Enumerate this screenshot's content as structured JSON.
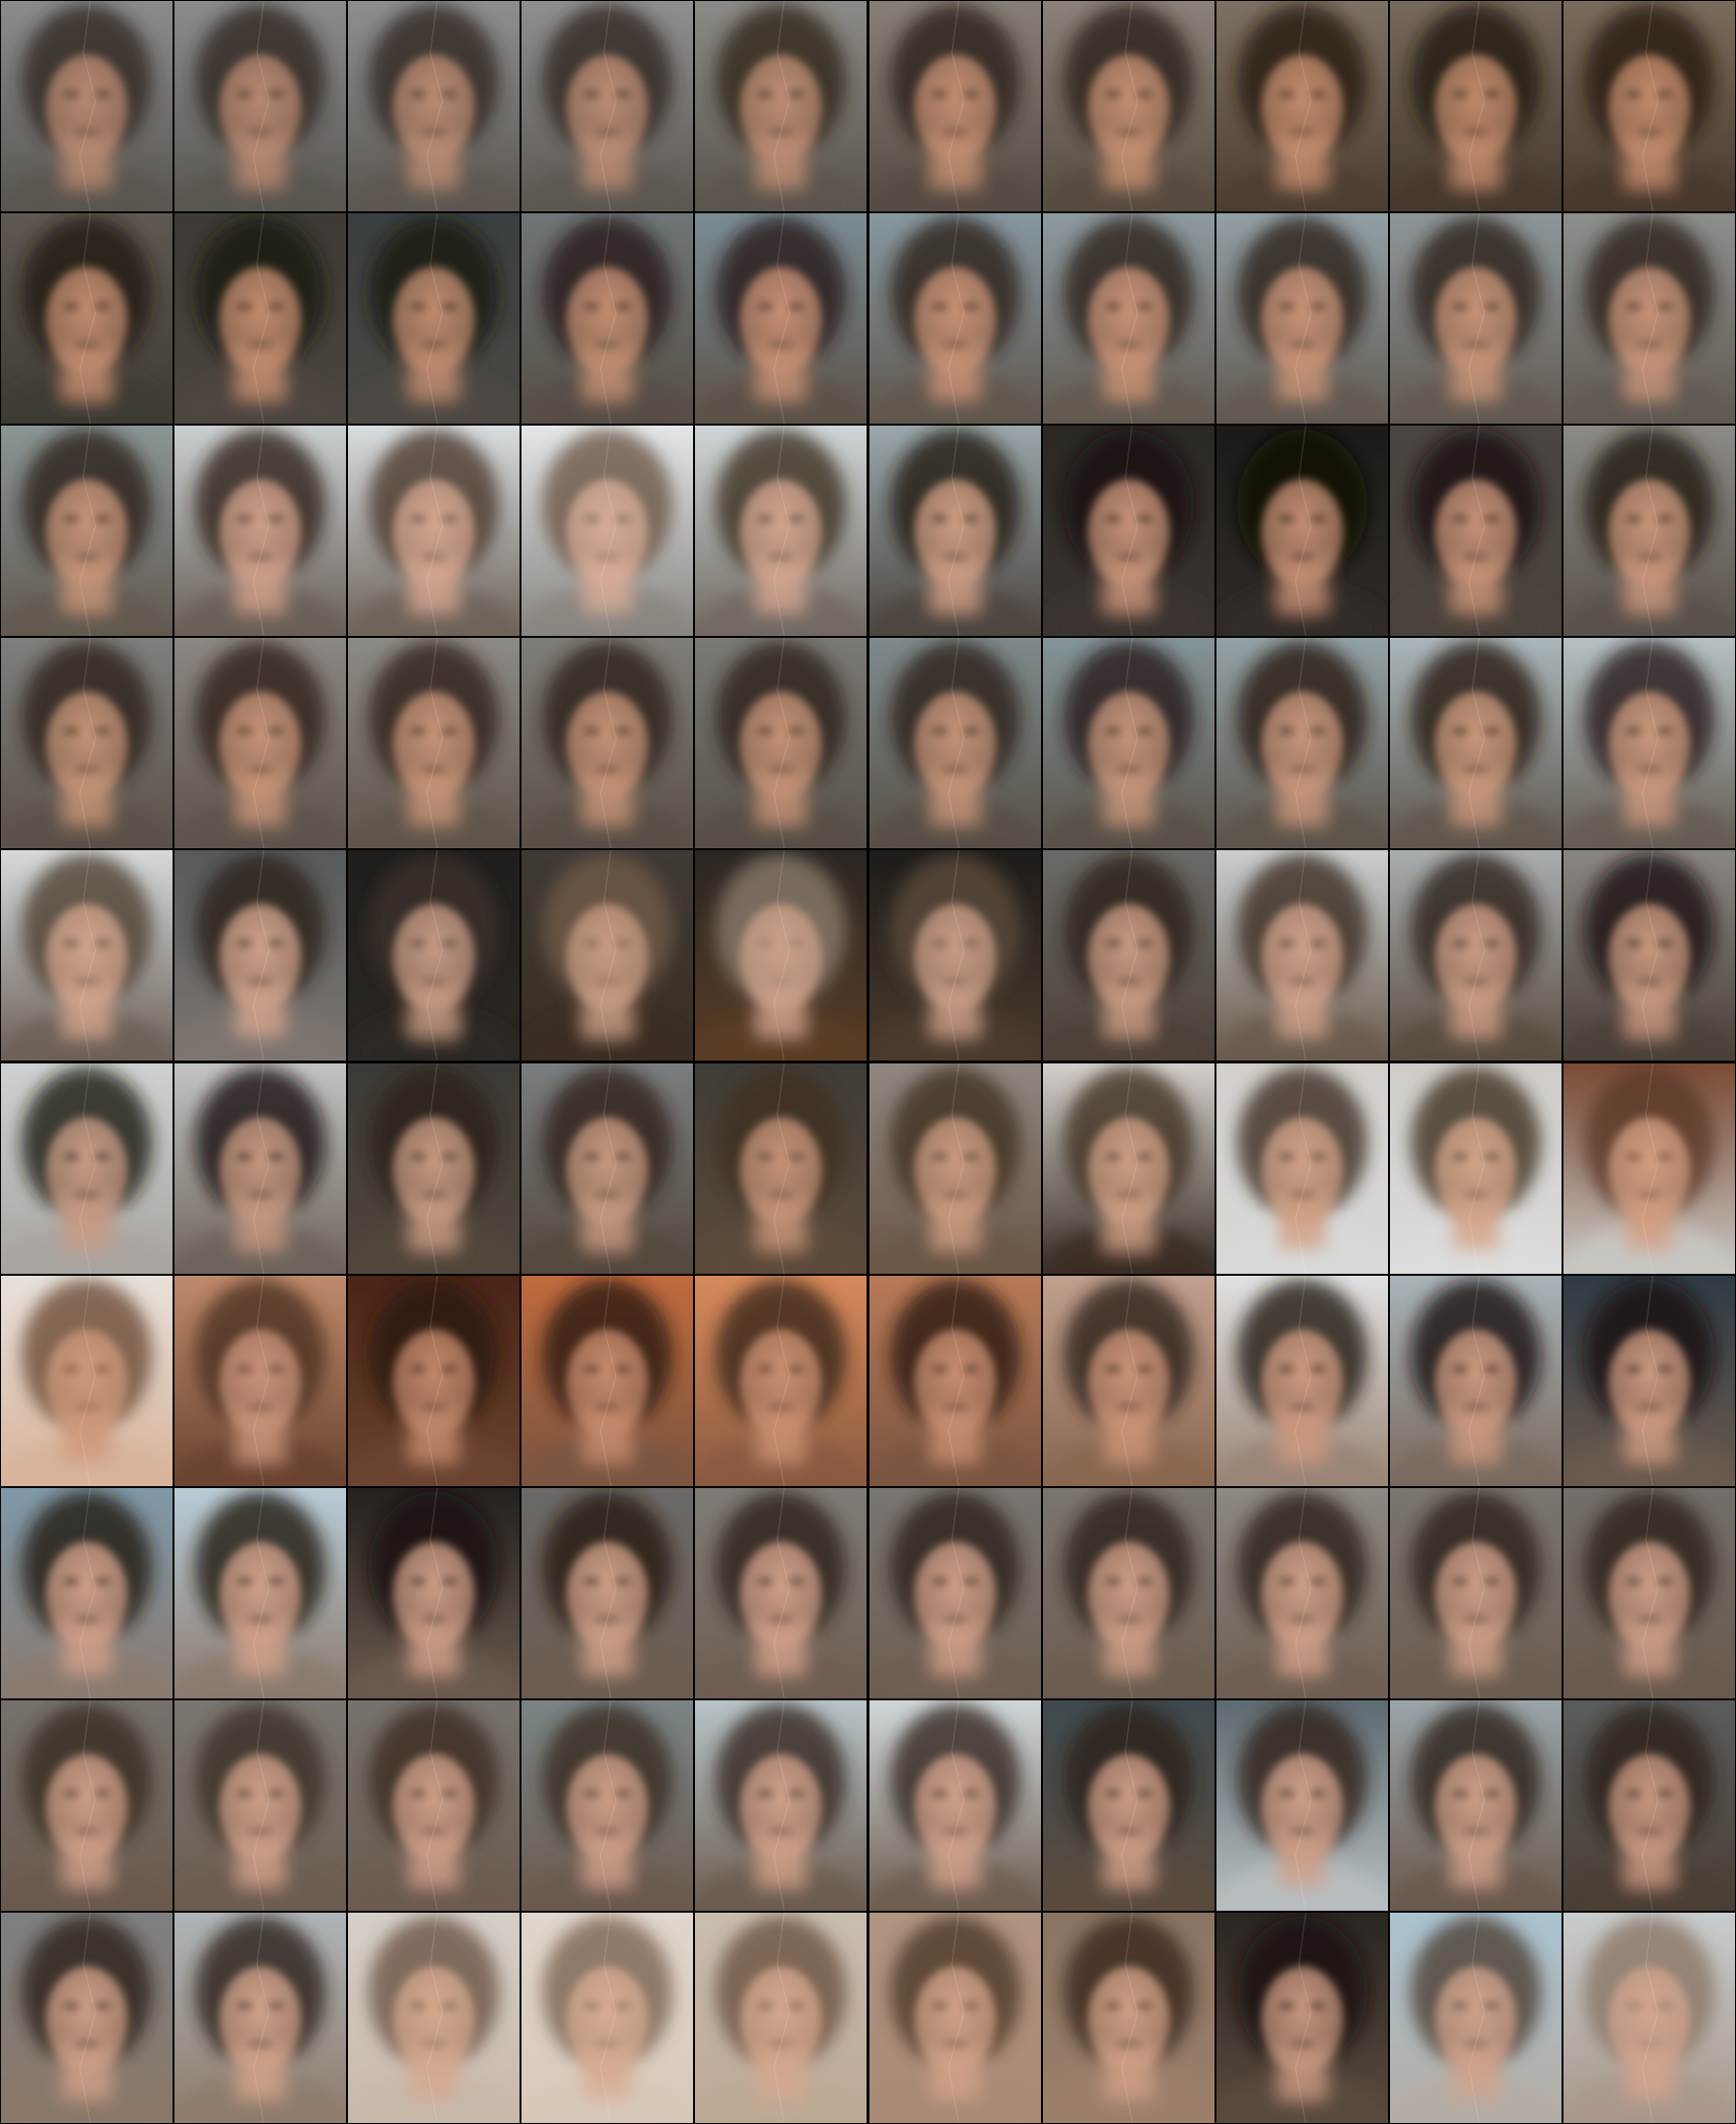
{
  "grid": {
    "rows": 10,
    "cols": 10,
    "separator_color": "#000000",
    "tiles": [
      {
        "bg_top": "#8a8c8c",
        "bg_bottom": "#5a5550",
        "hair": "#2e241e",
        "face": "#b98a72"
      },
      {
        "bg_top": "#8a8c8c",
        "bg_bottom": "#5a5550",
        "hair": "#2e241e",
        "face": "#b98a72"
      },
      {
        "bg_top": "#8d8f90",
        "bg_bottom": "#5c5650",
        "hair": "#30261f",
        "face": "#bb8c73"
      },
      {
        "bg_top": "#8e8f8f",
        "bg_bottom": "#5d5751",
        "hair": "#31271f",
        "face": "#bc8d74"
      },
      {
        "bg_top": "#8b8a86",
        "bg_bottom": "#5b544d",
        "hair": "#30251d",
        "face": "#c08e74"
      },
      {
        "bg_top": "#877f77",
        "bg_bottom": "#564b42",
        "hair": "#2d2219",
        "face": "#c48f72"
      },
      {
        "bg_top": "#8a8178",
        "bg_bottom": "#574b40",
        "hair": "#2c2118",
        "face": "#c59072"
      },
      {
        "bg_top": "#7d7163",
        "bg_bottom": "#4c3e32",
        "hair": "#271c14",
        "face": "#c48d6e"
      },
      {
        "bg_top": "#76695b",
        "bg_bottom": "#45382c",
        "hair": "#231811",
        "face": "#c28b6c"
      },
      {
        "bg_top": "#7a6b5b",
        "bg_bottom": "#48392c",
        "hair": "#241911",
        "face": "#c38c6c"
      },
      {
        "bg_top": "#5e5851",
        "bg_bottom": "#3f3a34",
        "hair": "#221a14",
        "face": "#c38d70"
      },
      {
        "bg_top": "#3d3934",
        "bg_bottom": "#4d4640",
        "hair": "#1c1511",
        "face": "#c48e70"
      },
      {
        "bg_top": "#394040",
        "bg_bottom": "#4c4842",
        "hair": "#1d1612",
        "face": "#c28d70"
      },
      {
        "bg_top": "#6f7676",
        "bg_bottom": "#564e46",
        "hair": "#261c15",
        "face": "#c48f72"
      },
      {
        "bg_top": "#7a8c94",
        "bg_bottom": "#5d5248",
        "hair": "#281d15",
        "face": "#c89074"
      },
      {
        "bg_top": "#8798a0",
        "bg_bottom": "#5f564d",
        "hair": "#2a1f17",
        "face": "#c99275"
      },
      {
        "bg_top": "#8d9aa0",
        "bg_bottom": "#625950",
        "hair": "#2b2018",
        "face": "#c99376"
      },
      {
        "bg_top": "#92a0a6",
        "bg_bottom": "#625a51",
        "hair": "#2c2119",
        "face": "#c99477"
      },
      {
        "bg_top": "#8e9699",
        "bg_bottom": "#625a52",
        "hair": "#2d221a",
        "face": "#c89477"
      },
      {
        "bg_top": "#8c8f8d",
        "bg_bottom": "#615951",
        "hair": "#2d221a",
        "face": "#c79478"
      },
      {
        "bg_top": "#8a9596",
        "bg_bottom": "#625a50",
        "hair": "#2c2119",
        "face": "#c89579"
      },
      {
        "bg_top": "#c9cfd0",
        "bg_bottom": "#6a6058",
        "hair": "#2e231b",
        "face": "#d0a08a"
      },
      {
        "bg_top": "#d8dde0",
        "bg_bottom": "#6e645a",
        "hair": "#4a3a2c",
        "face": "#d5a790"
      },
      {
        "bg_top": "#e3e7ea",
        "bg_bottom": "#8a8580",
        "hair": "#6a5646",
        "face": "#d8ad98"
      },
      {
        "bg_top": "#cfd6d8",
        "bg_bottom": "#726a62",
        "hair": "#3c2e23",
        "face": "#d4a68f"
      },
      {
        "bg_top": "#9aa7ab",
        "bg_bottom": "#4e4640",
        "hair": "#1e1611",
        "face": "#cf9e84"
      },
      {
        "bg_top": "#2a2824",
        "bg_bottom": "#3b3430",
        "hair": "#15100c",
        "face": "#c99479"
      },
      {
        "bg_top": "#1c1a17",
        "bg_bottom": "#312b27",
        "hair": "#100b08",
        "face": "#c58f74"
      },
      {
        "bg_top": "#4a4540",
        "bg_bottom": "#4a423c",
        "hair": "#1b140f",
        "face": "#c89378"
      },
      {
        "bg_top": "#8b8a86",
        "bg_bottom": "#5a524a",
        "hair": "#221912",
        "face": "#ca967b"
      },
      {
        "bg_top": "#7e7f7c",
        "bg_bottom": "#5b5148",
        "hair": "#2c2017",
        "face": "#c69477"
      },
      {
        "bg_top": "#8b8782",
        "bg_bottom": "#5d534a",
        "hair": "#2e2218",
        "face": "#c79478"
      },
      {
        "bg_top": "#8d8a85",
        "bg_bottom": "#5f554b",
        "hair": "#2f2319",
        "face": "#c79478"
      },
      {
        "bg_top": "#7f7d78",
        "bg_bottom": "#5a5047",
        "hair": "#2c2017",
        "face": "#c69377"
      },
      {
        "bg_top": "#7a7a76",
        "bg_bottom": "#575047",
        "hair": "#2a1f16",
        "face": "#c69377"
      },
      {
        "bg_top": "#7f8a8c",
        "bg_bottom": "#585047",
        "hair": "#291e16",
        "face": "#c69478"
      },
      {
        "bg_top": "#849498",
        "bg_bottom": "#5a5249",
        "hair": "#281d15",
        "face": "#c79579"
      },
      {
        "bg_top": "#93a2a6",
        "bg_bottom": "#5d544b",
        "hair": "#271c14",
        "face": "#c9977b"
      },
      {
        "bg_top": "#aab7bb",
        "bg_bottom": "#60574e",
        "hair": "#271c14",
        "face": "#ca987c"
      },
      {
        "bg_top": "#b5c1c4",
        "bg_bottom": "#655c53",
        "hair": "#281d15",
        "face": "#cb997d"
      },
      {
        "bg_top": "#d5dadc",
        "bg_bottom": "#6d6158",
        "hair": "#4c3d31",
        "face": "#d3a58d"
      },
      {
        "bg_top": "#555a5a",
        "bg_bottom": "#7d7570",
        "hair": "#2a2019",
        "face": "#d0a38c"
      },
      {
        "bg_top": "#1f1e1b",
        "bg_bottom": "#2c2723",
        "hair": "#3c3129",
        "face": "#c79b84"
      },
      {
        "bg_top": "#3f3a34",
        "bg_bottom": "#3a2d22",
        "hair": "#6f5a48",
        "face": "#c99c84"
      },
      {
        "bg_top": "#2a2622",
        "bg_bottom": "#5a3d26",
        "hair": "#8a7a6c",
        "face": "#cda18a"
      },
      {
        "bg_top": "#1e1c19",
        "bg_bottom": "#4a3a2d",
        "hair": "#5a4a3c",
        "face": "#c99d86"
      },
      {
        "bg_top": "#6a6a66",
        "bg_bottom": "#4c4038",
        "hair": "#2c221a",
        "face": "#c99b83"
      },
      {
        "bg_top": "#c9ced0",
        "bg_bottom": "#6a5b4d",
        "hair": "#3b2d22",
        "face": "#cfa18a"
      },
      {
        "bg_top": "#a9aeaf",
        "bg_bottom": "#5a4c40",
        "hair": "#2c2119",
        "face": "#cc9c84"
      },
      {
        "bg_top": "#8a8682",
        "bg_bottom": "#4a4038",
        "hair": "#1a130e",
        "face": "#c9997f"
      },
      {
        "bg_top": "#cfd1d0",
        "bg_bottom": "#a8a49f",
        "hair": "#1c1511",
        "face": "#c99c85"
      },
      {
        "bg_top": "#c2c4c2",
        "bg_bottom": "#6e645b",
        "hair": "#16110d",
        "face": "#c79981"
      },
      {
        "bg_top": "#3b3a36",
        "bg_bottom": "#51463b",
        "hair": "#2a1f17",
        "face": "#c79a81"
      },
      {
        "bg_top": "#7a7e7f",
        "bg_bottom": "#54483e",
        "hair": "#2f2319",
        "face": "#c89a80"
      },
      {
        "bg_top": "#3f3d38",
        "bg_bottom": "#5c4a3a",
        "hair": "#3e2e22",
        "face": "#c79478"
      },
      {
        "bg_top": "#8f8781",
        "bg_bottom": "#6a5646",
        "hair": "#3e2e22",
        "face": "#cc9b80"
      },
      {
        "bg_top": "#d3cfcb",
        "bg_bottom": "#3a2f26",
        "hair": "#3e2e22",
        "face": "#cf9f84"
      },
      {
        "bg_top": "#d2cfcb",
        "bg_bottom": "#d8d9d8",
        "hair": "#3c2c20",
        "face": "#d2a287"
      },
      {
        "bg_top": "#cfccc8",
        "bg_bottom": "#dcdcdb",
        "hair": "#3e2e22",
        "face": "#d5a689"
      },
      {
        "bg_top": "#7a4a34",
        "bg_bottom": "#c8c6c2",
        "hair": "#5a3a26",
        "face": "#d39f82"
      },
      {
        "bg_top": "#e7e1db",
        "bg_bottom": "#d7b39a",
        "hair": "#6c4a34",
        "face": "#cf9a7c"
      },
      {
        "bg_top": "#bf8a6c",
        "bg_bottom": "#6a4430",
        "hair": "#4a2f20",
        "face": "#c9937a"
      },
      {
        "bg_top": "#4a2416",
        "bg_bottom": "#6a4430",
        "hair": "#2a1810",
        "face": "#c4896c"
      },
      {
        "bg_top": "#bf6a3e",
        "bg_bottom": "#7a5440",
        "hair": "#2a1a12",
        "face": "#c88c6e"
      },
      {
        "bg_top": "#d78a5c",
        "bg_bottom": "#8a5a40",
        "hair": "#3a261a",
        "face": "#cc9072"
      },
      {
        "bg_top": "#b87a58",
        "bg_bottom": "#7a5440",
        "hair": "#2c1c13",
        "face": "#c98f72"
      },
      {
        "bg_top": "#c0a08e",
        "bg_bottom": "#8a6650",
        "hair": "#2c1e15",
        "face": "#cc9478"
      },
      {
        "bg_top": "#dfe1e2",
        "bg_bottom": "#9a8576",
        "hair": "#1e1510",
        "face": "#cf9a80"
      },
      {
        "bg_top": "#a9b3b8",
        "bg_bottom": "#7a6a5e",
        "hair": "#1b130e",
        "face": "#cd9a80"
      },
      {
        "bg_top": "#2f3b45",
        "bg_bottom": "#6a5a4e",
        "hair": "#1a120d",
        "face": "#cd9a80"
      },
      {
        "bg_top": "#7f98a8",
        "bg_bottom": "#8a7a70",
        "hair": "#1e1510",
        "face": "#d1a089"
      },
      {
        "bg_top": "#b9ccd6",
        "bg_bottom": "#8a7a6e",
        "hair": "#1f1611",
        "face": "#d3a28b"
      },
      {
        "bg_top": "#24211e",
        "bg_bottom": "#6a5a4e",
        "hair": "#1c1410",
        "face": "#cf9e87"
      },
      {
        "bg_top": "#6a6966",
        "bg_bottom": "#6c5c50",
        "hair": "#261b14",
        "face": "#d0a088"
      },
      {
        "bg_top": "#7e7b76",
        "bg_bottom": "#6e5e52",
        "hair": "#2a1e16",
        "face": "#d1a089"
      },
      {
        "bg_top": "#787571",
        "bg_bottom": "#6e5e52",
        "hair": "#2a1e16",
        "face": "#d09f88"
      },
      {
        "bg_top": "#7b7570",
        "bg_bottom": "#6c5c50",
        "hair": "#2b1f17",
        "face": "#cf9e87"
      },
      {
        "bg_top": "#8d8883",
        "bg_bottom": "#6e5e52",
        "hair": "#2c2018",
        "face": "#d0a089"
      },
      {
        "bg_top": "#7a7570",
        "bg_bottom": "#6c5c50",
        "hair": "#2b1f17",
        "face": "#cf9f88"
      },
      {
        "bg_top": "#726e69",
        "bg_bottom": "#6a5a4e",
        "hair": "#2a1e16",
        "face": "#ce9e87"
      },
      {
        "bg_top": "#75716c",
        "bg_bottom": "#6a5a4e",
        "hair": "#3a2c22",
        "face": "#cf9f88"
      },
      {
        "bg_top": "#7a7671",
        "bg_bottom": "#6c5c50",
        "hair": "#3c2e24",
        "face": "#d0a089"
      },
      {
        "bg_top": "#76726d",
        "bg_bottom": "#6b5b4f",
        "hair": "#3b2d23",
        "face": "#cf9f88"
      },
      {
        "bg_top": "#7b8486",
        "bg_bottom": "#6a5a4e",
        "hair": "#382a20",
        "face": "#cf9f88"
      },
      {
        "bg_top": "#b8c4c8",
        "bg_bottom": "#6c5c50",
        "hair": "#362820",
        "face": "#d1a18a"
      },
      {
        "bg_top": "#cfd7d9",
        "bg_bottom": "#6e5e52",
        "hair": "#34261e",
        "face": "#d2a28b"
      },
      {
        "bg_top": "#3f4a4e",
        "bg_bottom": "#5a4a3e",
        "hair": "#2a1e16",
        "face": "#ce9d86"
      },
      {
        "bg_top": "#5d6a70",
        "bg_bottom": "#b8bec0",
        "hair": "#2e2219",
        "face": "#d0a089"
      },
      {
        "bg_top": "#9aa4a8",
        "bg_bottom": "#6a5a4e",
        "hair": "#2c2018",
        "face": "#cf9f88"
      },
      {
        "bg_top": "#5a5c5c",
        "bg_bottom": "#4a3e34",
        "hair": "#2a1e16",
        "face": "#c99880"
      },
      {
        "bg_top": "#7e7f80",
        "bg_bottom": "#8a7868",
        "hair": "#2a1e16",
        "face": "#d0a088"
      },
      {
        "bg_top": "#aeb4b8",
        "bg_bottom": "#8e7c6c",
        "hair": "#2c2018",
        "face": "#d2a38b"
      },
      {
        "bg_top": "#d5cfc8",
        "bg_bottom": "#c8b8a8",
        "hair": "#6a5444",
        "face": "#d6a98f"
      },
      {
        "bg_top": "#e0d6cc",
        "bg_bottom": "#d8c8b8",
        "hair": "#7a6452",
        "face": "#d8ac92"
      },
      {
        "bg_top": "#c9bdb1",
        "bg_bottom": "#bca894",
        "hair": "#6a5240",
        "face": "#d6a88e"
      },
      {
        "bg_top": "#b09482",
        "bg_bottom": "#a88a74",
        "hair": "#4e3826",
        "face": "#d3a389"
      },
      {
        "bg_top": "#8a7464",
        "bg_bottom": "#9c806a",
        "hair": "#3a281c",
        "face": "#d1a086"
      },
      {
        "bg_top": "#2a2622",
        "bg_bottom": "#5a4a3e",
        "hair": "#1c140e",
        "face": "#c99880"
      },
      {
        "bg_top": "#a9c3d0",
        "bg_bottom": "#b4aca4",
        "hair": "#4e3e32",
        "face": "#d1a38b"
      },
      {
        "bg_top": "#c8ccce",
        "bg_bottom": "#a8988a",
        "hair": "#8a7666",
        "face": "#d3a58e"
      }
    ]
  }
}
